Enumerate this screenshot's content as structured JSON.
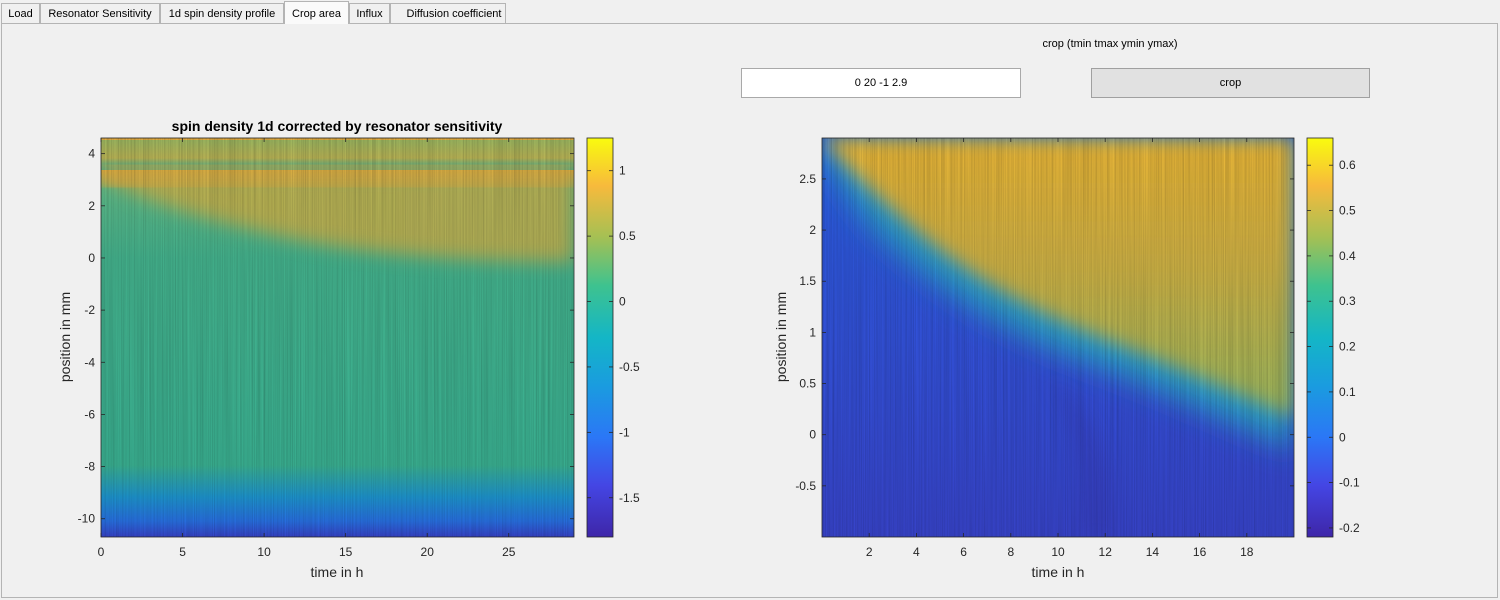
{
  "tabs": [
    {
      "label": "Load",
      "active": false
    },
    {
      "label": "Resonator Sensitivity",
      "active": false
    },
    {
      "label": "1d spin density profile",
      "active": false
    },
    {
      "label": "Crop area",
      "active": true
    },
    {
      "label": "Influx",
      "active": false
    },
    {
      "label": "Diffusion coefficient",
      "active": false
    }
  ],
  "crop": {
    "label": "crop (tmin tmax ymin ymax)",
    "value": "0 20 -1 2.9",
    "button_label": "crop"
  },
  "chart_data": [
    {
      "type": "heatmap",
      "title": "spin density 1d corrected by resonator sensitivity",
      "xlabel": "time in h",
      "ylabel": "position in mm",
      "xlim": [
        0,
        29
      ],
      "ylim": [
        -10.7,
        4.6
      ],
      "xticks": [
        0,
        5,
        10,
        15,
        20,
        25
      ],
      "yticks": [
        4,
        2,
        0,
        -2,
        -4,
        -6,
        -8,
        -10
      ],
      "colorbar": {
        "range": [
          -1.8,
          1.25
        ],
        "ticks": [
          1,
          0.5,
          0,
          -0.5,
          -1,
          -1.5
        ]
      },
      "colormap": "parula"
    },
    {
      "type": "heatmap",
      "title": "",
      "xlabel": "time in h",
      "ylabel": "position in mm",
      "xlim": [
        0,
        20
      ],
      "ylim": [
        -1,
        2.9
      ],
      "xticks": [
        2,
        4,
        6,
        8,
        10,
        12,
        14,
        16,
        18
      ],
      "yticks": [
        2.5,
        2,
        1.5,
        1,
        0.5,
        0,
        -0.5
      ],
      "colorbar": {
        "range": [
          -0.22,
          0.66
        ],
        "ticks": [
          0.6,
          0.5,
          0.4,
          0.3,
          0.2,
          0.1,
          0,
          -0.1,
          -0.2
        ]
      },
      "colormap": "parula"
    }
  ]
}
